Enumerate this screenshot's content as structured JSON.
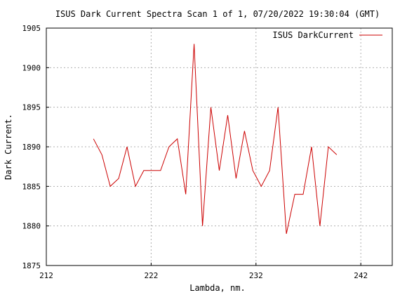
{
  "chart_data": {
    "type": "line",
    "title": "ISUS Dark Current Spectra Scan 1 of 1, 07/20/2022 19:30:04 (GMT)",
    "xlabel": "Lambda, nm.",
    "ylabel": "Dark Current.",
    "xlim": [
      212,
      245
    ],
    "ylim": [
      1875,
      1905
    ],
    "xticks": [
      "212",
      "222",
      "232",
      "242"
    ],
    "yticks": [
      "1875",
      "1880",
      "1885",
      "1890",
      "1895",
      "1900",
      "1905"
    ],
    "grid": true,
    "legend_position": "top-right",
    "series": [
      {
        "name": "ISUS DarkCurrent",
        "color": "#cc0000",
        "x": [
          216.5,
          217.3,
          218.1,
          218.9,
          219.7,
          220.5,
          221.3,
          222.1,
          222.9,
          223.7,
          224.5,
          225.3,
          226.1,
          226.9,
          227.7,
          228.5,
          229.3,
          230.1,
          230.9,
          231.7,
          232.5,
          233.3,
          234.1,
          234.9,
          235.7,
          236.5,
          237.3,
          238.1,
          238.9,
          239.7
        ],
        "y": [
          1891,
          1889,
          1885,
          1886,
          1890,
          1885,
          1887,
          1887,
          1887,
          1890,
          1891,
          1884,
          1903,
          1880,
          1895,
          1887,
          1894,
          1886,
          1892,
          1887,
          1885,
          1887,
          1895,
          1879,
          1884,
          1884,
          1890,
          1880,
          1890,
          1889
        ]
      }
    ]
  }
}
